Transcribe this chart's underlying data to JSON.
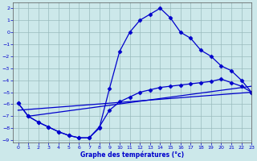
{
  "xlabel": "Graphe des températures (°c)",
  "bg_color": "#cce8ea",
  "grid_color": "#99bbbd",
  "line_color": "#0000cc",
  "xlim": [
    -0.5,
    23
  ],
  "ylim": [
    -9.2,
    2.5
  ],
  "yticks": [
    2,
    1,
    0,
    -1,
    -2,
    -3,
    -4,
    -5,
    -6,
    -7,
    -8,
    -9
  ],
  "xticks": [
    0,
    1,
    2,
    3,
    4,
    5,
    6,
    7,
    8,
    9,
    10,
    11,
    12,
    13,
    14,
    15,
    16,
    17,
    18,
    19,
    20,
    21,
    22,
    23
  ],
  "curve1_x": [
    0,
    1,
    2,
    3,
    4,
    5,
    6,
    7,
    8,
    9,
    10,
    11,
    12,
    13,
    14,
    15,
    16,
    17,
    18,
    19,
    20,
    21,
    22,
    23
  ],
  "curve1_y": [
    -5.9,
    -7.0,
    -7.5,
    -7.9,
    -8.3,
    -8.6,
    -8.8,
    -8.8,
    -8.0,
    -4.7,
    -1.6,
    0.0,
    1.0,
    1.5,
    2.0,
    1.2,
    0.0,
    -0.5,
    -1.5,
    -2.0,
    -2.8,
    -3.2,
    -4.0,
    -5.0
  ],
  "curve2_x": [
    0,
    1,
    2,
    3,
    4,
    5,
    6,
    7,
    8,
    9,
    10,
    11,
    12,
    13,
    14,
    15,
    16,
    17,
    18,
    19,
    20,
    21,
    22,
    23
  ],
  "curve2_y": [
    -5.9,
    -7.0,
    -7.5,
    -7.9,
    -8.3,
    -8.6,
    -8.8,
    -8.8,
    -7.9,
    -6.5,
    -5.8,
    -5.4,
    -5.0,
    -4.8,
    -4.6,
    -4.5,
    -4.4,
    -4.3,
    -4.2,
    -4.1,
    -3.9,
    -4.2,
    -4.5,
    -5.0
  ],
  "curve3_x": [
    0,
    23
  ],
  "curve3_y": [
    -6.5,
    -5.0
  ],
  "curve4_x": [
    1,
    23
  ],
  "curve4_y": [
    -7.0,
    -4.5
  ],
  "marker": "D",
  "markersize": 2.5,
  "linewidth": 0.9
}
